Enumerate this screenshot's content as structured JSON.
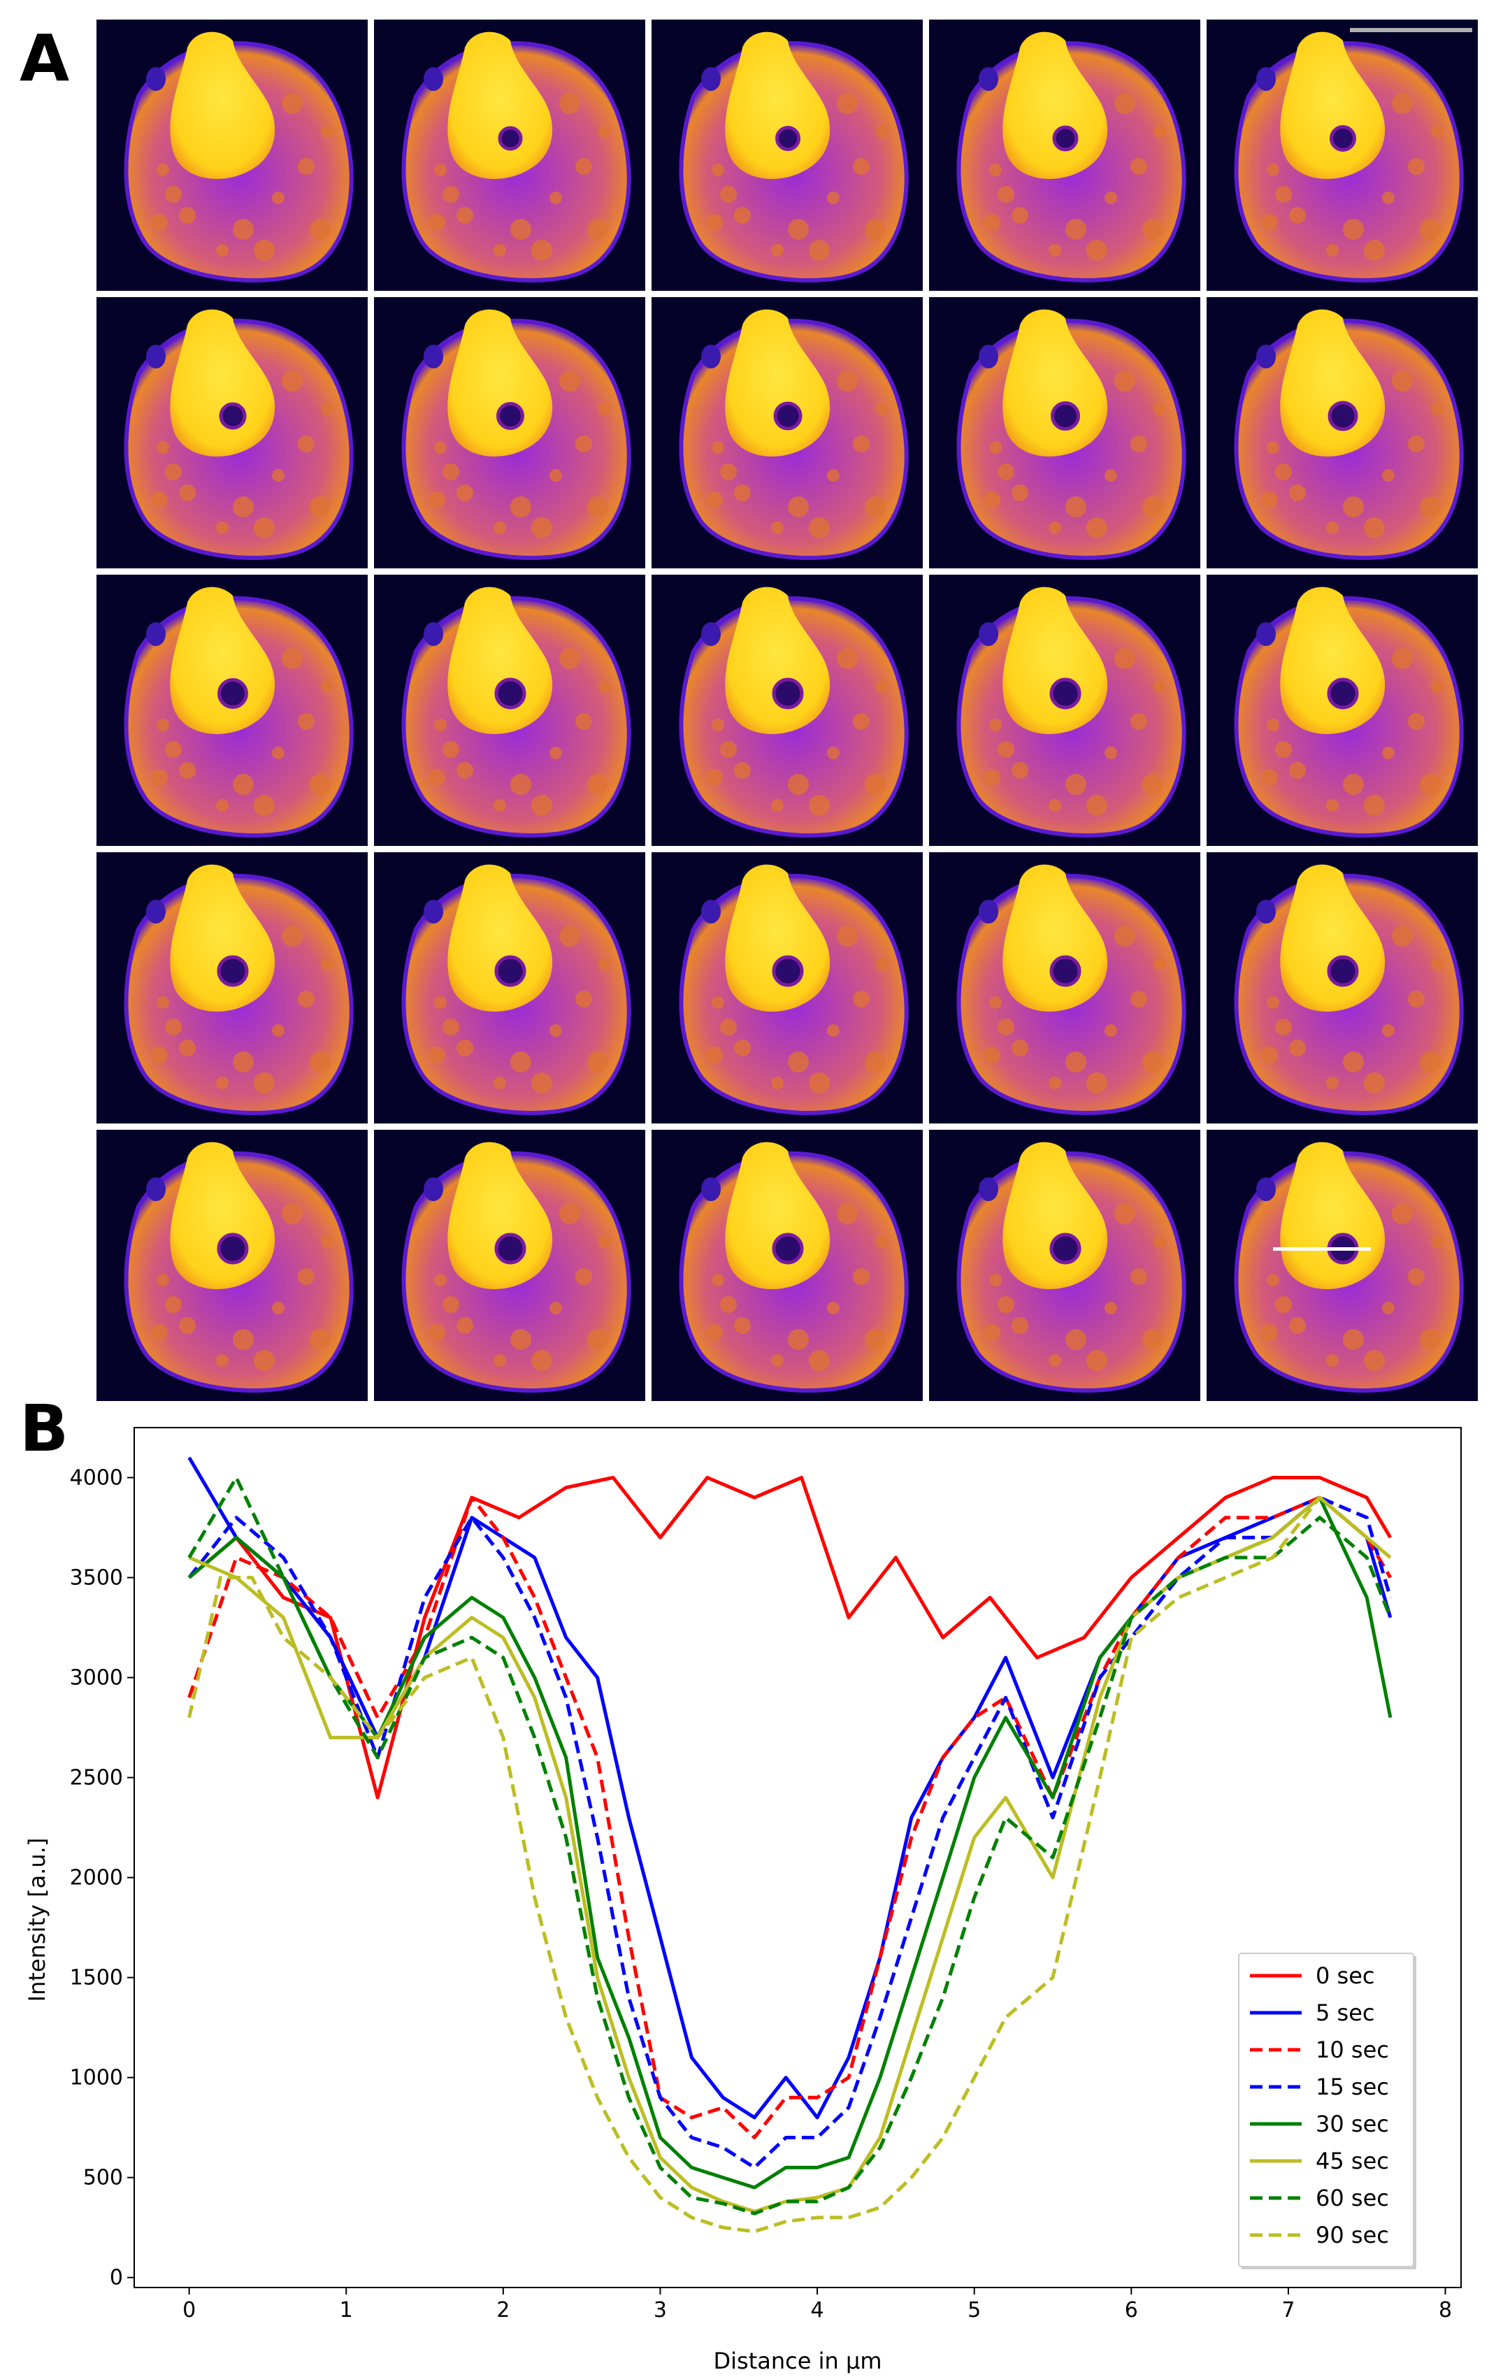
{
  "figure": {
    "panel_a_label": "A",
    "panel_b_label": "B"
  },
  "colors": {
    "background_dark": "#05022a",
    "cell_edge": "#5a1ad0",
    "cell_body": "#9a2bd8",
    "cell_mid": "#d45a7a",
    "nucleus_bright": "#ffd21a",
    "scale_bar": "#b0b0b0",
    "profile_line": "#ffffff"
  },
  "image_grid": {
    "rows": 5,
    "cols": 5,
    "frames": 25,
    "scale_bar_in_first_row_last_col": true,
    "profile_line_in_last_frame": true,
    "hole_visible_from_frame": 2
  },
  "chart_data": {
    "type": "line",
    "xlabel": "Distance in µm",
    "ylabel": "Intensity [a.u.]",
    "xlim": [
      -0.35,
      8.1
    ],
    "ylim": [
      -50,
      4250
    ],
    "xticks": [
      0,
      1,
      2,
      3,
      4,
      5,
      6,
      7,
      8
    ],
    "yticks": [
      0,
      500,
      1000,
      1500,
      2000,
      2500,
      3000,
      3500,
      4000
    ],
    "grid": false,
    "legend": "lower-right",
    "series": [
      {
        "name": "0 sec",
        "color": "#ff0000",
        "dash": "solid",
        "x": [
          0,
          0.3,
          0.6,
          0.9,
          1.2,
          1.5,
          1.8,
          2.1,
          2.4,
          2.7,
          3.0,
          3.3,
          3.6,
          3.9,
          4.2,
          4.5,
          4.8,
          5.1,
          5.4,
          5.7,
          6.0,
          6.3,
          6.6,
          6.9,
          7.2,
          7.5,
          7.65
        ],
        "values": [
          3500,
          3700,
          3400,
          3300,
          2400,
          3300,
          3900,
          3800,
          3950,
          4000,
          3700,
          4000,
          3900,
          4000,
          3300,
          3600,
          3200,
          3400,
          3100,
          3200,
          3500,
          3700,
          3900,
          4000,
          4000,
          3900,
          3700
        ]
      },
      {
        "name": "5 sec",
        "color": "#0000ff",
        "dash": "solid",
        "x": [
          0,
          0.3,
          0.6,
          0.9,
          1.2,
          1.5,
          1.8,
          2.0,
          2.2,
          2.4,
          2.6,
          2.8,
          3.0,
          3.2,
          3.4,
          3.6,
          3.8,
          4.0,
          4.2,
          4.4,
          4.6,
          4.8,
          5.0,
          5.2,
          5.5,
          5.8,
          6.0,
          6.3,
          6.6,
          6.9,
          7.2,
          7.5,
          7.65
        ],
        "values": [
          4100,
          3700,
          3500,
          3200,
          2700,
          3100,
          3800,
          3700,
          3600,
          3200,
          3000,
          2300,
          1700,
          1100,
          900,
          800,
          1000,
          800,
          1100,
          1600,
          2300,
          2600,
          2800,
          3100,
          2500,
          3100,
          3300,
          3600,
          3700,
          3800,
          3900,
          3700,
          3300
        ]
      },
      {
        "name": "10 sec",
        "color": "#ff0000",
        "dash": "dashed",
        "x": [
          0,
          0.3,
          0.6,
          0.9,
          1.2,
          1.5,
          1.8,
          2.0,
          2.2,
          2.4,
          2.6,
          2.8,
          3.0,
          3.2,
          3.4,
          3.6,
          3.8,
          4.0,
          4.2,
          4.4,
          4.6,
          4.8,
          5.0,
          5.2,
          5.5,
          5.8,
          6.0,
          6.3,
          6.6,
          6.9,
          7.2,
          7.5,
          7.65
        ],
        "values": [
          2900,
          3600,
          3500,
          3300,
          2800,
          3200,
          3900,
          3700,
          3400,
          3000,
          2600,
          1700,
          900,
          800,
          850,
          700,
          900,
          900,
          1000,
          1600,
          2200,
          2600,
          2800,
          2900,
          2400,
          3000,
          3300,
          3600,
          3800,
          3800,
          3900,
          3700,
          3500
        ]
      },
      {
        "name": "15 sec",
        "color": "#0000ff",
        "dash": "dashed",
        "x": [
          0,
          0.3,
          0.6,
          0.9,
          1.2,
          1.5,
          1.8,
          2.0,
          2.2,
          2.4,
          2.6,
          2.8,
          3.0,
          3.2,
          3.4,
          3.6,
          3.8,
          4.0,
          4.2,
          4.4,
          4.6,
          4.8,
          5.0,
          5.2,
          5.5,
          5.8,
          6.0,
          6.3,
          6.6,
          6.9,
          7.2,
          7.5,
          7.65
        ],
        "values": [
          3500,
          3800,
          3600,
          3200,
          2600,
          3400,
          3800,
          3600,
          3300,
          2900,
          2200,
          1400,
          900,
          700,
          650,
          550,
          700,
          700,
          850,
          1300,
          1800,
          2300,
          2600,
          2900,
          2300,
          3000,
          3200,
          3500,
          3700,
          3700,
          3900,
          3800,
          3400
        ]
      },
      {
        "name": "30 sec",
        "color": "#008000",
        "dash": "solid",
        "x": [
          0,
          0.3,
          0.6,
          0.9,
          1.2,
          1.5,
          1.8,
          2.0,
          2.2,
          2.4,
          2.6,
          2.8,
          3.0,
          3.2,
          3.4,
          3.6,
          3.8,
          4.0,
          4.2,
          4.4,
          4.6,
          4.8,
          5.0,
          5.2,
          5.5,
          5.8,
          6.0,
          6.3,
          6.6,
          6.9,
          7.2,
          7.5,
          7.65
        ],
        "values": [
          3500,
          3700,
          3500,
          3000,
          2700,
          3200,
          3400,
          3300,
          3000,
          2600,
          1600,
          1200,
          700,
          550,
          500,
          450,
          550,
          550,
          600,
          1000,
          1500,
          2000,
          2500,
          2800,
          2400,
          3100,
          3300,
          3500,
          3600,
          3700,
          3900,
          3400,
          2800
        ]
      },
      {
        "name": "45 sec",
        "color": "#bcbd22",
        "dash": "solid",
        "x": [
          0,
          0.3,
          0.6,
          0.9,
          1.2,
          1.5,
          1.8,
          2.0,
          2.2,
          2.4,
          2.6,
          2.8,
          3.0,
          3.2,
          3.4,
          3.6,
          3.8,
          4.0,
          4.2,
          4.4,
          4.6,
          4.8,
          5.0,
          5.2,
          5.5,
          5.8,
          6.0,
          6.3,
          6.6,
          6.9,
          7.2,
          7.5,
          7.65
        ],
        "values": [
          3600,
          3500,
          3300,
          2700,
          2700,
          3100,
          3300,
          3200,
          2900,
          2400,
          1500,
          1000,
          600,
          450,
          380,
          330,
          380,
          400,
          450,
          700,
          1200,
          1700,
          2200,
          2400,
          2000,
          2900,
          3300,
          3500,
          3600,
          3700,
          3900,
          3700,
          3600
        ]
      },
      {
        "name": "60 sec",
        "color": "#008000",
        "dash": "dashed",
        "x": [
          0,
          0.3,
          0.6,
          0.9,
          1.2,
          1.5,
          1.8,
          2.0,
          2.2,
          2.4,
          2.6,
          2.8,
          3.0,
          3.2,
          3.4,
          3.6,
          3.8,
          4.0,
          4.2,
          4.4,
          4.6,
          4.8,
          5.0,
          5.2,
          5.5,
          5.8,
          6.0,
          6.3,
          6.6,
          6.9,
          7.2,
          7.5,
          7.65
        ],
        "values": [
          3600,
          4000,
          3500,
          3000,
          2600,
          3100,
          3200,
          3100,
          2700,
          2200,
          1400,
          900,
          550,
          400,
          370,
          320,
          380,
          380,
          450,
          650,
          1000,
          1400,
          1900,
          2300,
          2100,
          2800,
          3300,
          3500,
          3600,
          3600,
          3800,
          3600,
          3300
        ]
      },
      {
        "name": "90 sec",
        "color": "#bcbd22",
        "dash": "dashed",
        "x": [
          0,
          0.2,
          0.4,
          0.6,
          0.9,
          1.2,
          1.5,
          1.8,
          2.0,
          2.2,
          2.4,
          2.6,
          2.8,
          3.0,
          3.2,
          3.4,
          3.6,
          3.8,
          4.0,
          4.2,
          4.4,
          4.6,
          4.8,
          5.0,
          5.2,
          5.5,
          5.8,
          6.0,
          6.3,
          6.6,
          6.9,
          7.2,
          7.5,
          7.65
        ],
        "values": [
          2800,
          3500,
          3500,
          3200,
          3000,
          2700,
          3000,
          3100,
          2700,
          1900,
          1300,
          900,
          600,
          400,
          300,
          250,
          230,
          280,
          300,
          300,
          350,
          500,
          700,
          1000,
          1300,
          1500,
          2500,
          3200,
          3400,
          3500,
          3600,
          3900,
          3700,
          3600
        ]
      }
    ]
  }
}
